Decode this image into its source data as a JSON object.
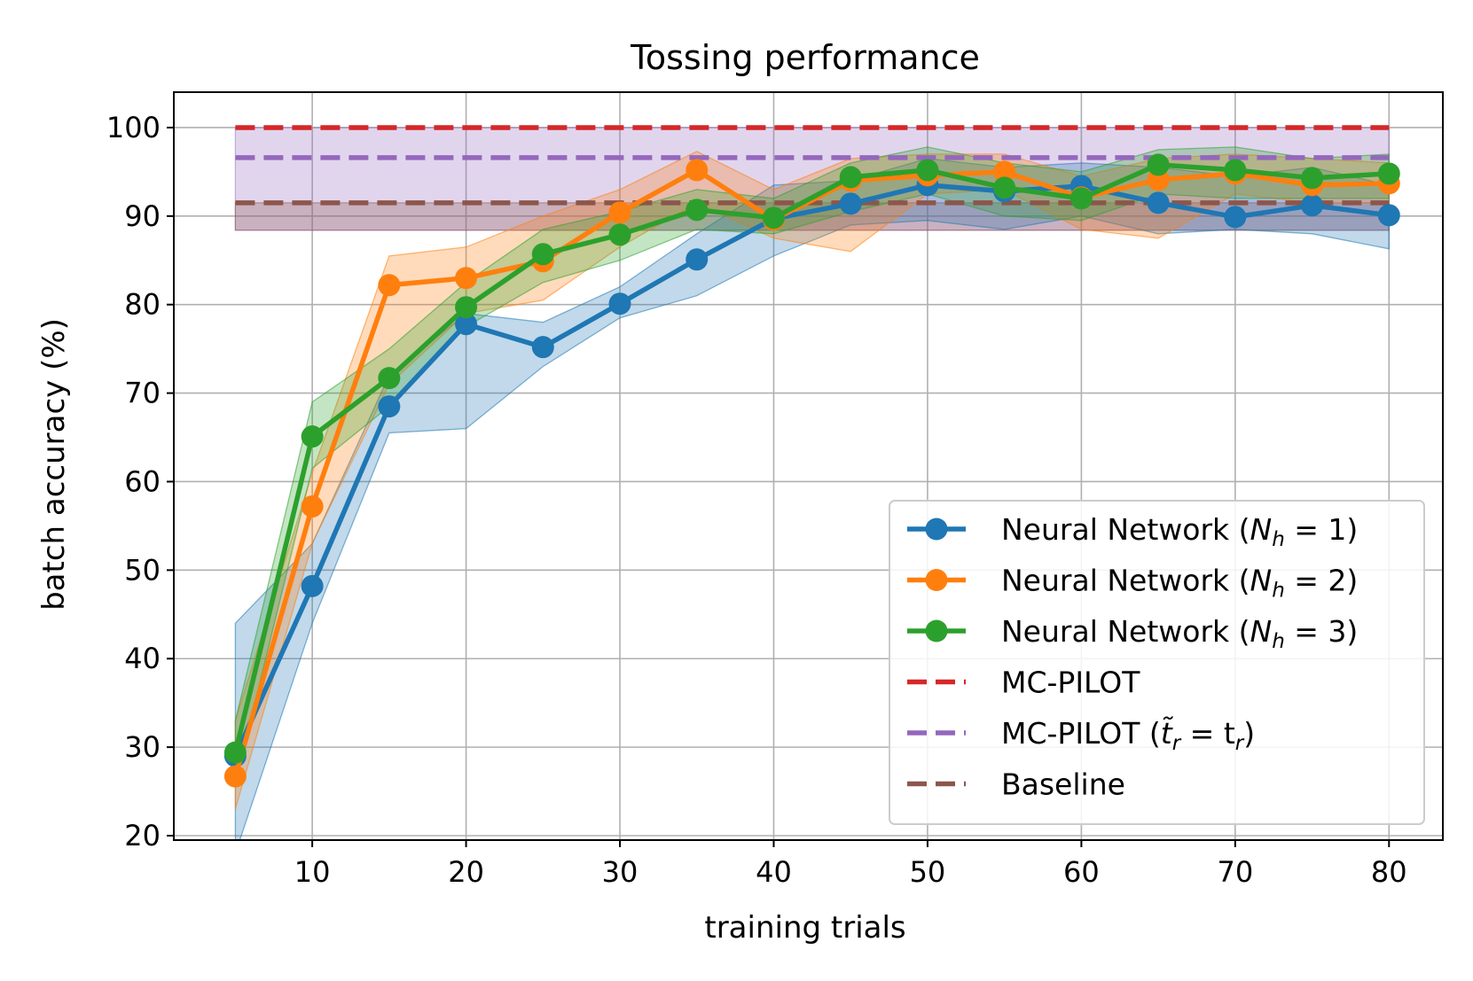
{
  "chart_data": {
    "type": "line",
    "title": "Tossing performance",
    "xlabel": "training trials",
    "ylabel": "batch accuracy (%)",
    "xlim": [
      1,
      83.5
    ],
    "ylim": [
      19.5,
      104
    ],
    "xticks": [
      10,
      20,
      30,
      40,
      50,
      60,
      70,
      80
    ],
    "yticks": [
      20,
      30,
      40,
      50,
      60,
      70,
      80,
      90,
      100
    ],
    "grid": true,
    "legend_position": "lower-right",
    "x": [
      5,
      10,
      15,
      20,
      25,
      30,
      35,
      40,
      45,
      50,
      55,
      60,
      65,
      70,
      75,
      80
    ],
    "series": [
      {
        "name": "Neural Network (N_h = 1)",
        "legend_main": "Neural Network (",
        "legend_var": "N",
        "legend_sub": "h",
        "legend_tail": " = 1)",
        "color": "#1f77b4",
        "style": "line-marker",
        "values": [
          29,
          48.2,
          68.5,
          77.8,
          75.2,
          80.1,
          85.1,
          89.7,
          91.4,
          93.5,
          92.8,
          93.4,
          91.5,
          89.9,
          91.2,
          90.1
        ],
        "band_low": [
          18,
          44,
          65.5,
          66,
          73,
          78.5,
          81,
          85.5,
          89,
          89.5,
          88.5,
          90,
          88,
          88.5,
          88,
          86.3
        ],
        "band_high": [
          44,
          53,
          72,
          79,
          78,
          82,
          88,
          93.5,
          94,
          96.5,
          95.5,
          96,
          95.5,
          94.5,
          95.5,
          93.5
        ]
      },
      {
        "name": "Neural Network (N_h = 2)",
        "legend_main": "Neural Network (",
        "legend_var": "N",
        "legend_sub": "h",
        "legend_tail": " = 2)",
        "color": "#ff7f0e",
        "style": "line-marker",
        "values": [
          26.7,
          57.2,
          82.2,
          83.0,
          84.9,
          90.4,
          95.2,
          89.6,
          94.0,
          94.6,
          95.0,
          92.1,
          94.1,
          94.8,
          93.5,
          93.7
        ],
        "band_low": [
          23,
          53,
          71,
          79,
          80.5,
          86.5,
          91.5,
          87.5,
          86,
          92.5,
          93,
          88.5,
          87.5,
          92.5,
          91.5,
          91.5
        ],
        "band_high": [
          33,
          61,
          85.5,
          86.5,
          90,
          93,
          97.3,
          93,
          96.5,
          97,
          97,
          94.5,
          96.5,
          97,
          96.5,
          96
        ]
      },
      {
        "name": "Neural Network (N_h = 3)",
        "legend_main": "Neural Network (",
        "legend_var": "N",
        "legend_sub": "h",
        "legend_tail": " = 3)",
        "color": "#2ca02c",
        "style": "line-marker",
        "values": [
          29.4,
          65.1,
          71.7,
          79.7,
          85.7,
          87.9,
          90.7,
          89.8,
          94.4,
          95.2,
          93.2,
          92.0,
          95.8,
          95.2,
          94.3,
          94.8
        ],
        "band_low": [
          26,
          61.5,
          68.5,
          77.5,
          82.5,
          85,
          88.5,
          88,
          90.5,
          92.5,
          90,
          89.5,
          92.5,
          92,
          92,
          92
        ],
        "band_high": [
          33,
          69,
          75,
          82.5,
          88.5,
          90.5,
          93,
          92,
          96,
          97.8,
          96,
          95,
          97.5,
          97.8,
          96.5,
          97
        ]
      },
      {
        "name": "MC-PILOT",
        "legend_main": "MC-PILOT",
        "legend_var": "",
        "legend_sub": "",
        "legend_tail": "",
        "color": "#d62728",
        "style": "dashed",
        "x_range": [
          5,
          80
        ],
        "value": 100
      },
      {
        "name": "MC-PILOT (t̃_r = t_r)",
        "legend_main": "MC-PILOT (",
        "legend_var": "t̃",
        "legend_sub": "r",
        "legend_tail": " = t",
        "legend_sub2": "r",
        "legend_end": ")",
        "color": "#9467bd",
        "style": "dashed",
        "x_range": [
          5,
          80
        ],
        "value": 96.6,
        "band_low": 88.4,
        "band_high": 100
      },
      {
        "name": "Baseline",
        "legend_main": "Baseline",
        "legend_var": "",
        "legend_sub": "",
        "legend_tail": "",
        "color": "#8c564b",
        "style": "dashed",
        "x_range": [
          5,
          80
        ],
        "value": 91.5,
        "band_low": 88.4,
        "band_high": 91.5
      }
    ]
  }
}
